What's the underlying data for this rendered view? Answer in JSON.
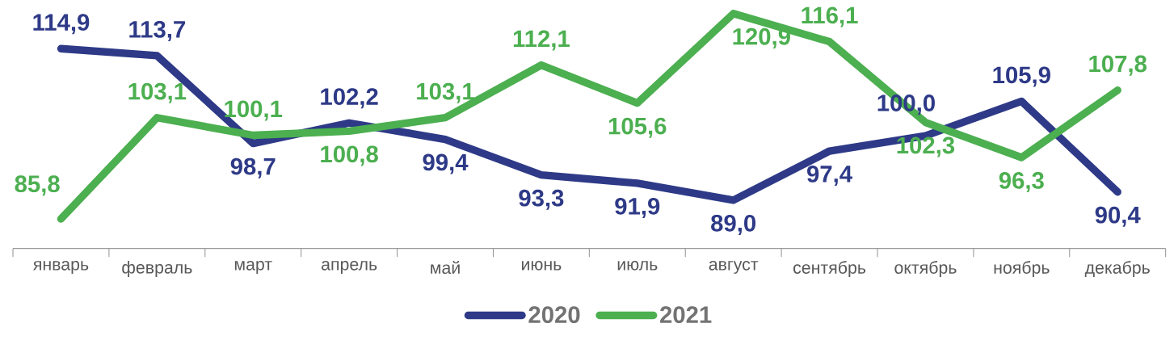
{
  "chart_data": {
    "type": "line",
    "categories": [
      "январь",
      "февраль",
      "март",
      "апрель",
      "май",
      "июнь",
      "июль",
      "август",
      "сентябрь",
      "октябрь",
      "ноябрь",
      "декабрь"
    ],
    "series": [
      {
        "name": "2020",
        "color": "#2e3a87",
        "values": [
          114.9,
          113.7,
          98.7,
          102.2,
          99.4,
          93.3,
          91.9,
          89.0,
          97.4,
          100.0,
          105.9,
          90.4
        ],
        "value_labels": [
          "114,9",
          "113,7",
          "98,7",
          "102,2",
          "99,4",
          "93,3",
          "91,9",
          "89,0",
          "97,4",
          "100,0",
          "105,9",
          "90,4"
        ]
      },
      {
        "name": "2021",
        "color": "#4caf50",
        "values": [
          85.8,
          103.1,
          100.1,
          100.8,
          103.1,
          112.1,
          105.6,
          120.9,
          116.1,
          102.3,
          96.3,
          107.8
        ],
        "value_labels": [
          "85,8",
          "103,1",
          "100,1",
          "100,8",
          "103,1",
          "112,1",
          "105,6",
          "120,9",
          "116,1",
          "102,3",
          "96,3",
          "107,8"
        ]
      }
    ],
    "legend": "bottom",
    "marker": "none",
    "line_style": "solid",
    "grid": false
  }
}
